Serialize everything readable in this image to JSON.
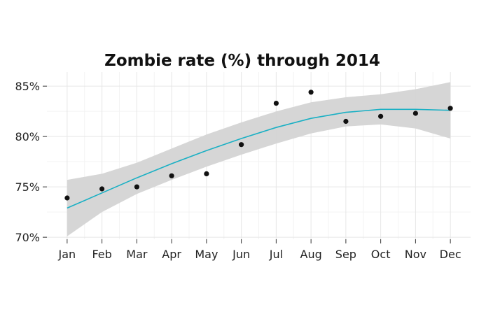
{
  "chart_data": {
    "type": "line",
    "title": "Zombie rate (%) through 2014",
    "xlabel": "",
    "ylabel": "",
    "categories": [
      "Jan",
      "Feb",
      "Mar",
      "Apr",
      "May",
      "Jun",
      "Jul",
      "Aug",
      "Sep",
      "Oct",
      "Nov",
      "Dec"
    ],
    "ylim": [
      69.8,
      86.4
    ],
    "yticks": [
      70,
      75,
      80,
      85
    ],
    "ytick_labels": [
      "70%",
      "75%",
      "80%",
      "85%"
    ],
    "grid": true,
    "points": [
      73.9,
      74.8,
      75.0,
      76.1,
      76.3,
      79.2,
      83.3,
      84.4,
      81.5,
      82.0,
      82.3,
      82.8
    ],
    "smooth": [
      72.9,
      74.4,
      75.9,
      77.3,
      78.6,
      79.8,
      80.9,
      81.8,
      82.4,
      82.7,
      82.7,
      82.6
    ],
    "band_lower": [
      70.1,
      72.5,
      74.3,
      75.7,
      77.0,
      78.2,
      79.3,
      80.3,
      81.0,
      81.2,
      80.8,
      79.8
    ],
    "band_upper": [
      75.7,
      76.3,
      77.4,
      78.8,
      80.2,
      81.4,
      82.5,
      83.4,
      83.9,
      84.2,
      84.7,
      85.4
    ],
    "colors": {
      "points": "#111111",
      "smooth_line": "#1ab0c4",
      "band": "#d4d4d4",
      "grid": "#e6e6e6"
    }
  }
}
